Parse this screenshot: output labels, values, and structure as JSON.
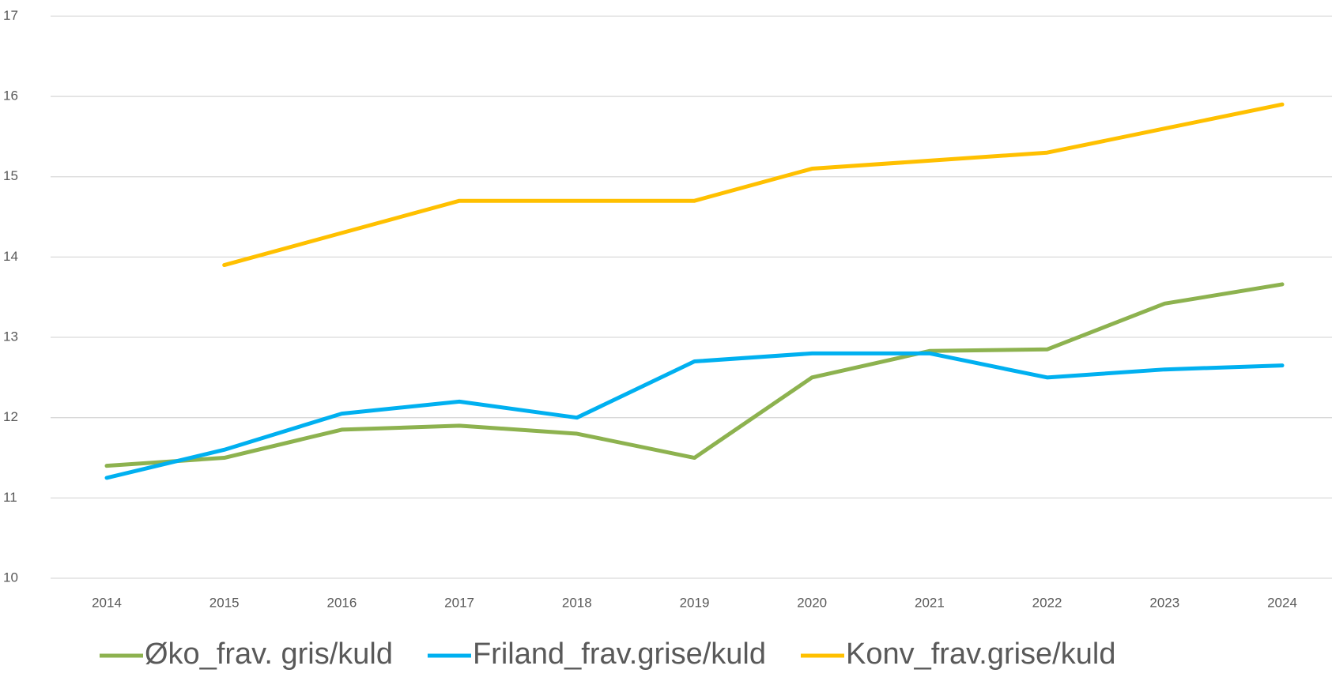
{
  "chart_data": {
    "type": "line",
    "categories": [
      "2014",
      "2015",
      "2016",
      "2017",
      "2018",
      "2019",
      "2020",
      "2021",
      "2022",
      "2023",
      "2024"
    ],
    "series": [
      {
        "name": "Øko_frav. gris/kuld",
        "color": "#8db24f",
        "values": [
          11.4,
          11.5,
          11.85,
          11.9,
          11.8,
          11.5,
          12.5,
          12.83,
          12.85,
          13.42,
          13.66
        ]
      },
      {
        "name": "Friland_frav.grise/kuld",
        "color": "#00b0f0",
        "values": [
          11.25,
          11.6,
          12.05,
          12.2,
          12.0,
          12.7,
          12.8,
          12.8,
          12.5,
          12.6,
          12.65
        ]
      },
      {
        "name": "Konv_frav.grise/kuld",
        "color": "#ffc000",
        "values": [
          null,
          13.9,
          14.3,
          14.7,
          14.7,
          14.7,
          15.1,
          15.2,
          15.3,
          15.6,
          15.9
        ]
      }
    ],
    "ylim": [
      10,
      17
    ],
    "yticks": [
      10,
      11,
      12,
      13,
      14,
      15,
      16,
      17
    ],
    "grid": true,
    "legend": "bottom"
  }
}
